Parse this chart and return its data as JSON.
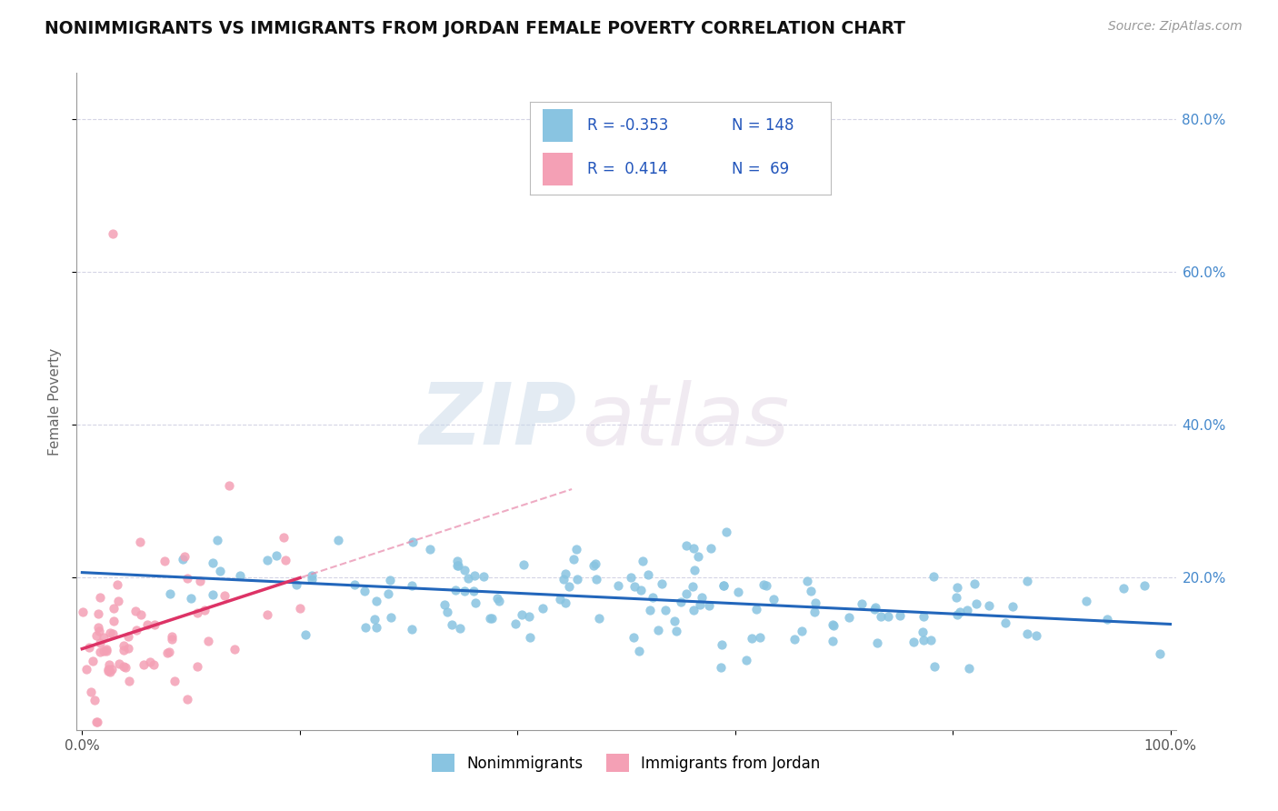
{
  "title": "NONIMMIGRANTS VS IMMIGRANTS FROM JORDAN FEMALE POVERTY CORRELATION CHART",
  "source": "Source: ZipAtlas.com",
  "ylabel_label": "Female Poverty",
  "blue_color": "#89c4e1",
  "pink_color": "#f4a0b5",
  "trend_blue": "#2266bb",
  "trend_pink": "#dd3366",
  "trend_pink_dashed": "#e888aa",
  "watermark_zip": "ZIP",
  "watermark_atlas": "atlas",
  "r_blue": -0.353,
  "n_blue": 148,
  "r_pink": 0.414,
  "n_pink": 69,
  "ylim": [
    0,
    0.86
  ],
  "xlim": [
    -0.005,
    1.005
  ],
  "yticks": [
    0.2,
    0.4,
    0.6,
    0.8
  ],
  "ytick_labels": [
    "20.0%",
    "40.0%",
    "60.0%",
    "80.0%"
  ],
  "xticks": [
    0.0,
    0.2,
    0.4,
    0.6,
    0.8,
    1.0
  ],
  "xtick_labels": [
    "0.0%",
    "",
    "",
    "",
    "",
    "100.0%"
  ]
}
